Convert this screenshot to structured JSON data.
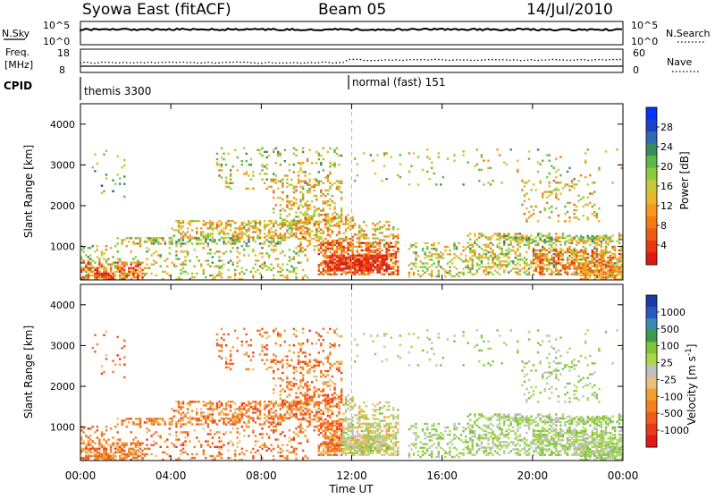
{
  "header": {
    "title": "Syowa East (fitACF)",
    "beam": "Beam 05",
    "date": "14/Jul/2010"
  },
  "panels": {
    "nsky_label": "N.Sky",
    "nsearch_label": "N.Search",
    "nsky_ticks": [
      "10^5",
      "10^0"
    ],
    "nsearch_ticks": [
      "10^5",
      "10^0"
    ],
    "freq_label": "Freq.",
    "freq_unit": "[MHz]",
    "freq_ticks": [
      "18",
      "8"
    ],
    "nave_label": "Nave",
    "nave_ticks": [
      "60",
      "0"
    ],
    "cpid_label": "CPID",
    "cpid_modes": [
      "themis 3300",
      "normal (fast) 151"
    ]
  },
  "chart_data": [
    {
      "type": "heatmap",
      "name": "power",
      "ylabel": "Slant Range [km]",
      "yticks": [
        "4000",
        "3000",
        "2000",
        "1000"
      ],
      "ylim": [
        180,
        4500
      ],
      "colorbar_label": "Power [dB]",
      "colorbar_ticks": [
        "28",
        "24",
        "20",
        "16",
        "12",
        "8",
        "4"
      ],
      "colors": [
        "#0033ff",
        "#1a44c8",
        "#2e6cb0",
        "#3b8c5c",
        "#5cb848",
        "#8acd3c",
        "#c8c83a",
        "#e8b828",
        "#f59a1a",
        "#f57a12",
        "#ee5a12",
        "#e83810",
        "#dd1a10"
      ]
    },
    {
      "type": "heatmap",
      "name": "velocity",
      "ylabel": "Slant Range [km]",
      "yticks": [
        "4000",
        "3000",
        "2000",
        "1000"
      ],
      "ylim": [
        180,
        4500
      ],
      "colorbar_label": "Velocity [m s^-1]",
      "colorbar_ticks": [
        "1000",
        "500",
        "100",
        "25",
        "-25",
        "-100",
        "-500",
        "-1000"
      ],
      "colors": [
        "#1a3aa8",
        "#2858c0",
        "#3a8ab0",
        "#3e9a4a",
        "#7ec43a",
        "#a8d84a",
        "#c0c0c0",
        "#e8c07a",
        "#f0a030",
        "#f5801a",
        "#f05a1a",
        "#e83a18",
        "#e01818"
      ]
    }
  ],
  "xaxis": {
    "label": "Time UT",
    "ticks": [
      "00:00",
      "04:00",
      "08:00",
      "12:00",
      "16:00",
      "20:00",
      "00:00"
    ]
  }
}
